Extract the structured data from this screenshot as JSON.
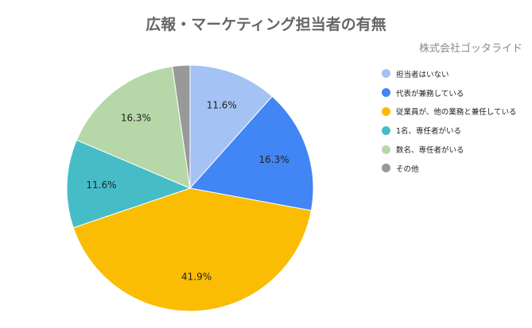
{
  "chart_data": {
    "type": "pie",
    "title": "広報・マーケティング担当者の有無",
    "subtitle": "株式会社ゴッタライド",
    "legend_position": "right",
    "slices": [
      {
        "label": "担当者はいない",
        "value": 11.6,
        "display": "11.6%",
        "color": "#A4C2F4"
      },
      {
        "label": "代表が兼務している",
        "value": 16.3,
        "display": "16.3%",
        "color": "#4285F4"
      },
      {
        "label": "従業員が、他の業務と兼任している",
        "value": 41.9,
        "display": "41.9%",
        "color": "#FBBC04"
      },
      {
        "label": "1名、専任者がいる",
        "value": 11.6,
        "display": "11.6%",
        "color": "#46BDC6"
      },
      {
        "label": "数名、専任者がいる",
        "value": 16.3,
        "display": "16.3%",
        "color": "#B6D7A8"
      },
      {
        "label": "その他",
        "value": 2.3,
        "display": "",
        "color": "#999999"
      }
    ]
  }
}
